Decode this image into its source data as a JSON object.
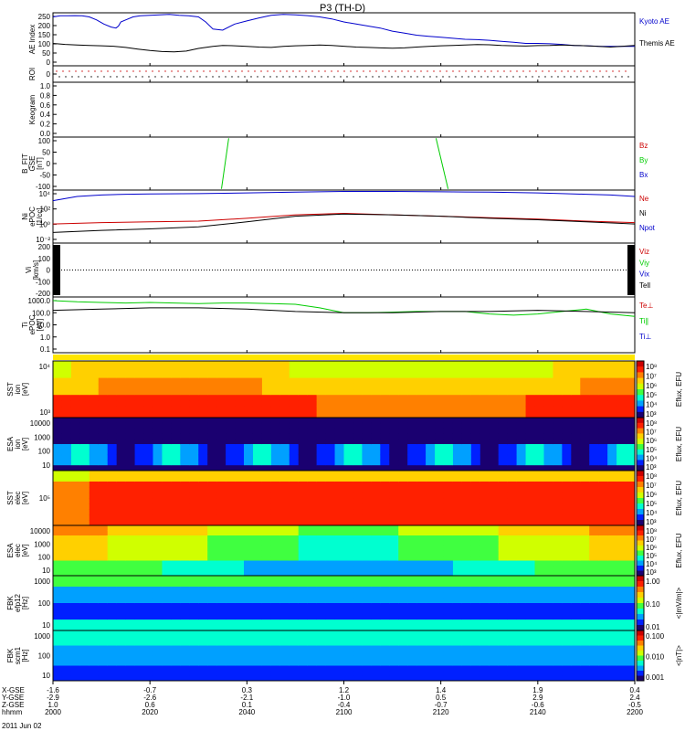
{
  "chart_data": {
    "type": "line",
    "title": "P3 (TH-D)",
    "date_label": "2011 Jun 02",
    "x_rows": [
      {
        "label": "X-GSE",
        "values": [
          "-1.6",
          "-0.7",
          "0.3",
          "1.2",
          "1.4",
          "1.9",
          "0.4"
        ]
      },
      {
        "label": "Y-GSE",
        "values": [
          "-2.9",
          "-2.6",
          "-2.1",
          "-1.0",
          "0.5",
          "2.9",
          "2.4"
        ]
      },
      {
        "label": "Z-GSE",
        "values": [
          "1.0",
          "0.6",
          "0.1",
          "-0.4",
          "-0.7",
          "-0.6",
          "-0.5"
        ]
      },
      {
        "label": "hhmm",
        "values": [
          "2000",
          "2020",
          "2040",
          "2100",
          "2120",
          "2140",
          "2200"
        ]
      }
    ],
    "panels": [
      {
        "id": "ae",
        "ylabel": "AE Index",
        "type": "line",
        "ticks": [
          "250",
          "200",
          "150",
          "100",
          "50",
          "0"
        ],
        "legend": [
          {
            "name": "Kyoto AE",
            "color": "#0000cc"
          },
          {
            "name": "Themis AE",
            "color": "#000000"
          }
        ],
        "ylim": [
          0,
          260
        ],
        "series": [
          {
            "name": "Kyoto AE",
            "color": "#0000cc",
            "x": [
              0,
              3,
              6,
              9,
              12,
              15,
              18,
              21,
              24,
              26,
              27,
              28,
              30,
              33,
              36,
              40,
              44,
              48,
              52,
              56,
              60,
              63,
              66,
              70,
              75,
              80,
              85,
              90,
              95,
              100,
              105,
              110,
              115,
              120,
              125,
              130,
              135,
              140,
              145,
              150,
              155,
              160,
              165,
              170,
              175,
              180,
              185,
              190,
              195,
              200,
              205,
              210,
              215,
              220,
              225,
              230,
              235,
              240
            ],
            "y": [
              240,
              245,
              245,
              246,
              245,
              240,
              225,
              205,
              190,
              185,
              195,
              215,
              225,
              240,
              245,
              248,
              250,
              252,
              248,
              245,
              240,
              215,
              180,
              175,
              205,
              220,
              235,
              248,
              252,
              250,
              246,
              240,
              230,
              215,
              205,
              195,
              185,
              170,
              160,
              150,
              145,
              140,
              135,
              130,
              128,
              125,
              120,
              115,
              110,
              110,
              108,
              105,
              100,
              98,
              96,
              95,
              95,
              95
            ]
          },
          {
            "name": "Themis AE",
            "color": "#000000",
            "x": [
              0,
              5,
              10,
              15,
              20,
              25,
              30,
              35,
              40,
              45,
              50,
              55,
              60,
              63,
              66,
              70,
              75,
              80,
              85,
              90,
              95,
              100,
              105,
              110,
              115,
              120,
              125,
              130,
              135,
              140,
              145,
              150,
              155,
              160,
              165,
              170,
              175,
              180,
              185,
              190,
              195,
              200,
              205,
              210,
              215,
              220,
              225,
              230,
              235,
              240
            ],
            "y": [
              110,
              105,
              102,
              100,
              98,
              96,
              90,
              82,
              75,
              70,
              68,
              72,
              85,
              90,
              95,
              100,
              98,
              95,
              92,
              90,
              95,
              98,
              100,
              102,
              100,
              96,
              92,
              90,
              88,
              86,
              88,
              92,
              95,
              98,
              100,
              102,
              104,
              103,
              100,
              98,
              97,
              99,
              100,
              102,
              100,
              98,
              95,
              92,
              96,
              100
            ]
          }
        ]
      },
      {
        "id": "roi",
        "ylabel": "ROI",
        "type": "dots",
        "ticks": [
          "0"
        ]
      },
      {
        "id": "keogram",
        "ylabel": "Keogram",
        "type": "empty",
        "ticks": [
          "1.0",
          "0.8",
          "0.6",
          "0.4",
          "0.2",
          "0.0"
        ]
      },
      {
        "id": "bfit",
        "ylabel": "B_FIT\nGSE\n[nT]",
        "type": "line",
        "ticks": [
          "100",
          "50",
          "0",
          "-50",
          "-100"
        ],
        "ylim": [
          -125,
          100
        ],
        "legend": [
          {
            "name": "Bz",
            "color": "#cc0000"
          },
          {
            "name": "By",
            "color": "#00cc00"
          },
          {
            "name": "Bx",
            "color": "#0000cc"
          }
        ],
        "series": [
          {
            "name": "By",
            "color": "#00cc00",
            "x": [
              69.5,
              72.5
            ],
            "y": [
              -120,
              95
            ]
          },
          {
            "name": "By",
            "color": "#00cc00",
            "x": [
              158,
              163
            ],
            "y": [
              95,
              -120
            ]
          }
        ]
      },
      {
        "id": "density",
        "ylabel": "Ni\nePOC\n[1/cc]",
        "type": "line",
        "ticks": [
          "10⁴",
          "10²",
          "10⁰",
          "10⁻²"
        ],
        "ylim": [
          -3,
          4.5
        ],
        "yscale": "log",
        "legend": [
          {
            "name": "Ne",
            "color": "#cc0000"
          },
          {
            "name": "Ni",
            "color": "#000000"
          },
          {
            "name": "Npot",
            "color": "#0000cc"
          }
        ],
        "series": [
          {
            "name": "Npot",
            "color": "#0000cc",
            "x": [
              0,
              10,
              20,
              30,
              40,
              60,
              80,
              100,
              120,
              140,
              160,
              180,
              200,
              210,
              220,
              230,
              240
            ],
            "y": [
              3.0,
              3.6,
              3.8,
              3.9,
              3.95,
              4.0,
              4.1,
              4.2,
              4.3,
              4.3,
              4.25,
              4.2,
              4.1,
              4.0,
              3.9,
              3.8,
              3.6
            ]
          },
          {
            "name": "Ne",
            "color": "#cc0000",
            "x": [
              0,
              20,
              40,
              60,
              80,
              100,
              120,
              140,
              160,
              180,
              200,
              220,
              240
            ],
            "y": [
              -0.3,
              -0.1,
              0.0,
              0.1,
              0.5,
              1.0,
              1.2,
              1.0,
              0.8,
              0.6,
              0.4,
              0.1,
              -0.1
            ]
          },
          {
            "name": "Ni",
            "color": "#000000",
            "x": [
              0,
              20,
              40,
              60,
              80,
              100,
              120,
              140,
              160,
              180,
              200,
              220,
              240
            ],
            "y": [
              -1.5,
              -1.2,
              -1.0,
              -0.7,
              0.0,
              0.8,
              1.1,
              1.0,
              0.8,
              0.5,
              0.3,
              0.0,
              -0.3
            ]
          }
        ]
      },
      {
        "id": "velocity",
        "ylabel": "Vi\n[km/s]",
        "type": "line",
        "ticks": [
          "200",
          "100",
          "0",
          "-100",
          "-200"
        ],
        "ylim": [
          -260,
          260
        ],
        "legend": [
          {
            "name": "Viz",
            "color": "#cc0000"
          },
          {
            "name": "Viy",
            "color": "#00cc00"
          },
          {
            "name": "Vix",
            "color": "#0000cc"
          },
          {
            "name": "Tell",
            "color": "#000000"
          }
        ],
        "series": []
      },
      {
        "id": "temperature",
        "ylabel": "Ti\nePOC\n[eV]",
        "type": "line",
        "ticks": [
          "1000.0",
          "100.0",
          "10.0",
          "1.0",
          "0.1"
        ],
        "ylim": [
          -1.2,
          3.4
        ],
        "yscale": "log",
        "legend": [
          {
            "name": "Te⊥",
            "color": "#cc0000"
          },
          {
            "name": "Ti∥",
            "color": "#00cc00"
          },
          {
            "name": "Ti⊥",
            "color": "#0000cc"
          }
        ],
        "series": [
          {
            "name": "Ti∥",
            "color": "#00cc00",
            "x": [
              0,
              10,
              20,
              30,
              40,
              50,
              60,
              70,
              80,
              90,
              100,
              110,
              120,
              130,
              140,
              150,
              160,
              170,
              180,
              190,
              200,
              210,
              220,
              230,
              240
            ],
            "y": [
              3.1,
              3.0,
              2.95,
              2.9,
              2.95,
              2.9,
              2.85,
              2.9,
              2.9,
              2.85,
              2.8,
              2.5,
              2.1,
              2.1,
              2.15,
              2.2,
              2.2,
              2.2,
              2.0,
              1.9,
              2.0,
              2.2,
              2.4,
              2.0,
              1.8
            ]
          },
          {
            "name": "Tell",
            "color": "#000000",
            "x": [
              0,
              20,
              40,
              60,
              80,
              100,
              120,
              140,
              160,
              180,
              200,
              220,
              240
            ],
            "y": [
              2.3,
              2.4,
              2.5,
              2.5,
              2.4,
              2.2,
              2.1,
              2.1,
              2.2,
              2.2,
              2.3,
              2.2,
              2.1
            ]
          }
        ]
      }
    ],
    "spectrograms": [
      {
        "id": "sst-ion",
        "ylabel": "SST\nion\n[eV]",
        "ticks": [
          "10⁴",
          "10³"
        ],
        "cbar": [
          "10⁸",
          "10⁷",
          "10⁶",
          "10⁵",
          "10⁴",
          "10³"
        ],
        "cbar_label": "Eflux, EFU"
      },
      {
        "id": "esa-ion",
        "ylabel": "ESA\nion\n[eV]",
        "ticks": [
          "10000",
          "1000",
          "100",
          "10"
        ],
        "cbar": [
          "10⁸",
          "10⁷",
          "10⁶",
          "10⁵",
          "10⁴",
          "10³"
        ],
        "cbar_label": "Eflux, EFU"
      },
      {
        "id": "sst-elec",
        "ylabel": "SST\nelec\n[eV]",
        "ticks": [
          "10⁵"
        ],
        "cbar": [
          "10⁸",
          "10⁷",
          "10⁶",
          "10⁵",
          "10⁴",
          "10³"
        ],
        "cbar_label": "Eflux, EFU"
      },
      {
        "id": "esa-elec",
        "ylabel": "ESA\nelec\n[eV]",
        "ticks": [
          "10000",
          "1000",
          "100",
          "10"
        ],
        "cbar": [
          "10⁸",
          "10⁷",
          "10⁶",
          "10⁵",
          "10⁴",
          "10³"
        ],
        "cbar_label": "Eflux, EFU"
      },
      {
        "id": "fbk-e",
        "ylabel": "FBK\nefp12\n[Hz]",
        "ticks": [
          "1000",
          "100",
          "10"
        ],
        "cbar": [
          "1.00",
          "0.10",
          "0.01"
        ],
        "cbar_label": "<|mV/m|>"
      },
      {
        "id": "fbk-b",
        "ylabel": "FBK\nscm1\n[Hz]",
        "ticks": [
          "1000",
          "100",
          "10"
        ],
        "cbar": [
          "0.100",
          "0.010",
          "0.001"
        ],
        "cbar_label": "<|nT|>"
      }
    ],
    "colors": {
      "kyoto": "#0000cc",
      "themis": "#000000",
      "red": "#cc0000",
      "green": "#00cc00",
      "blue": "#0000cc"
    }
  }
}
